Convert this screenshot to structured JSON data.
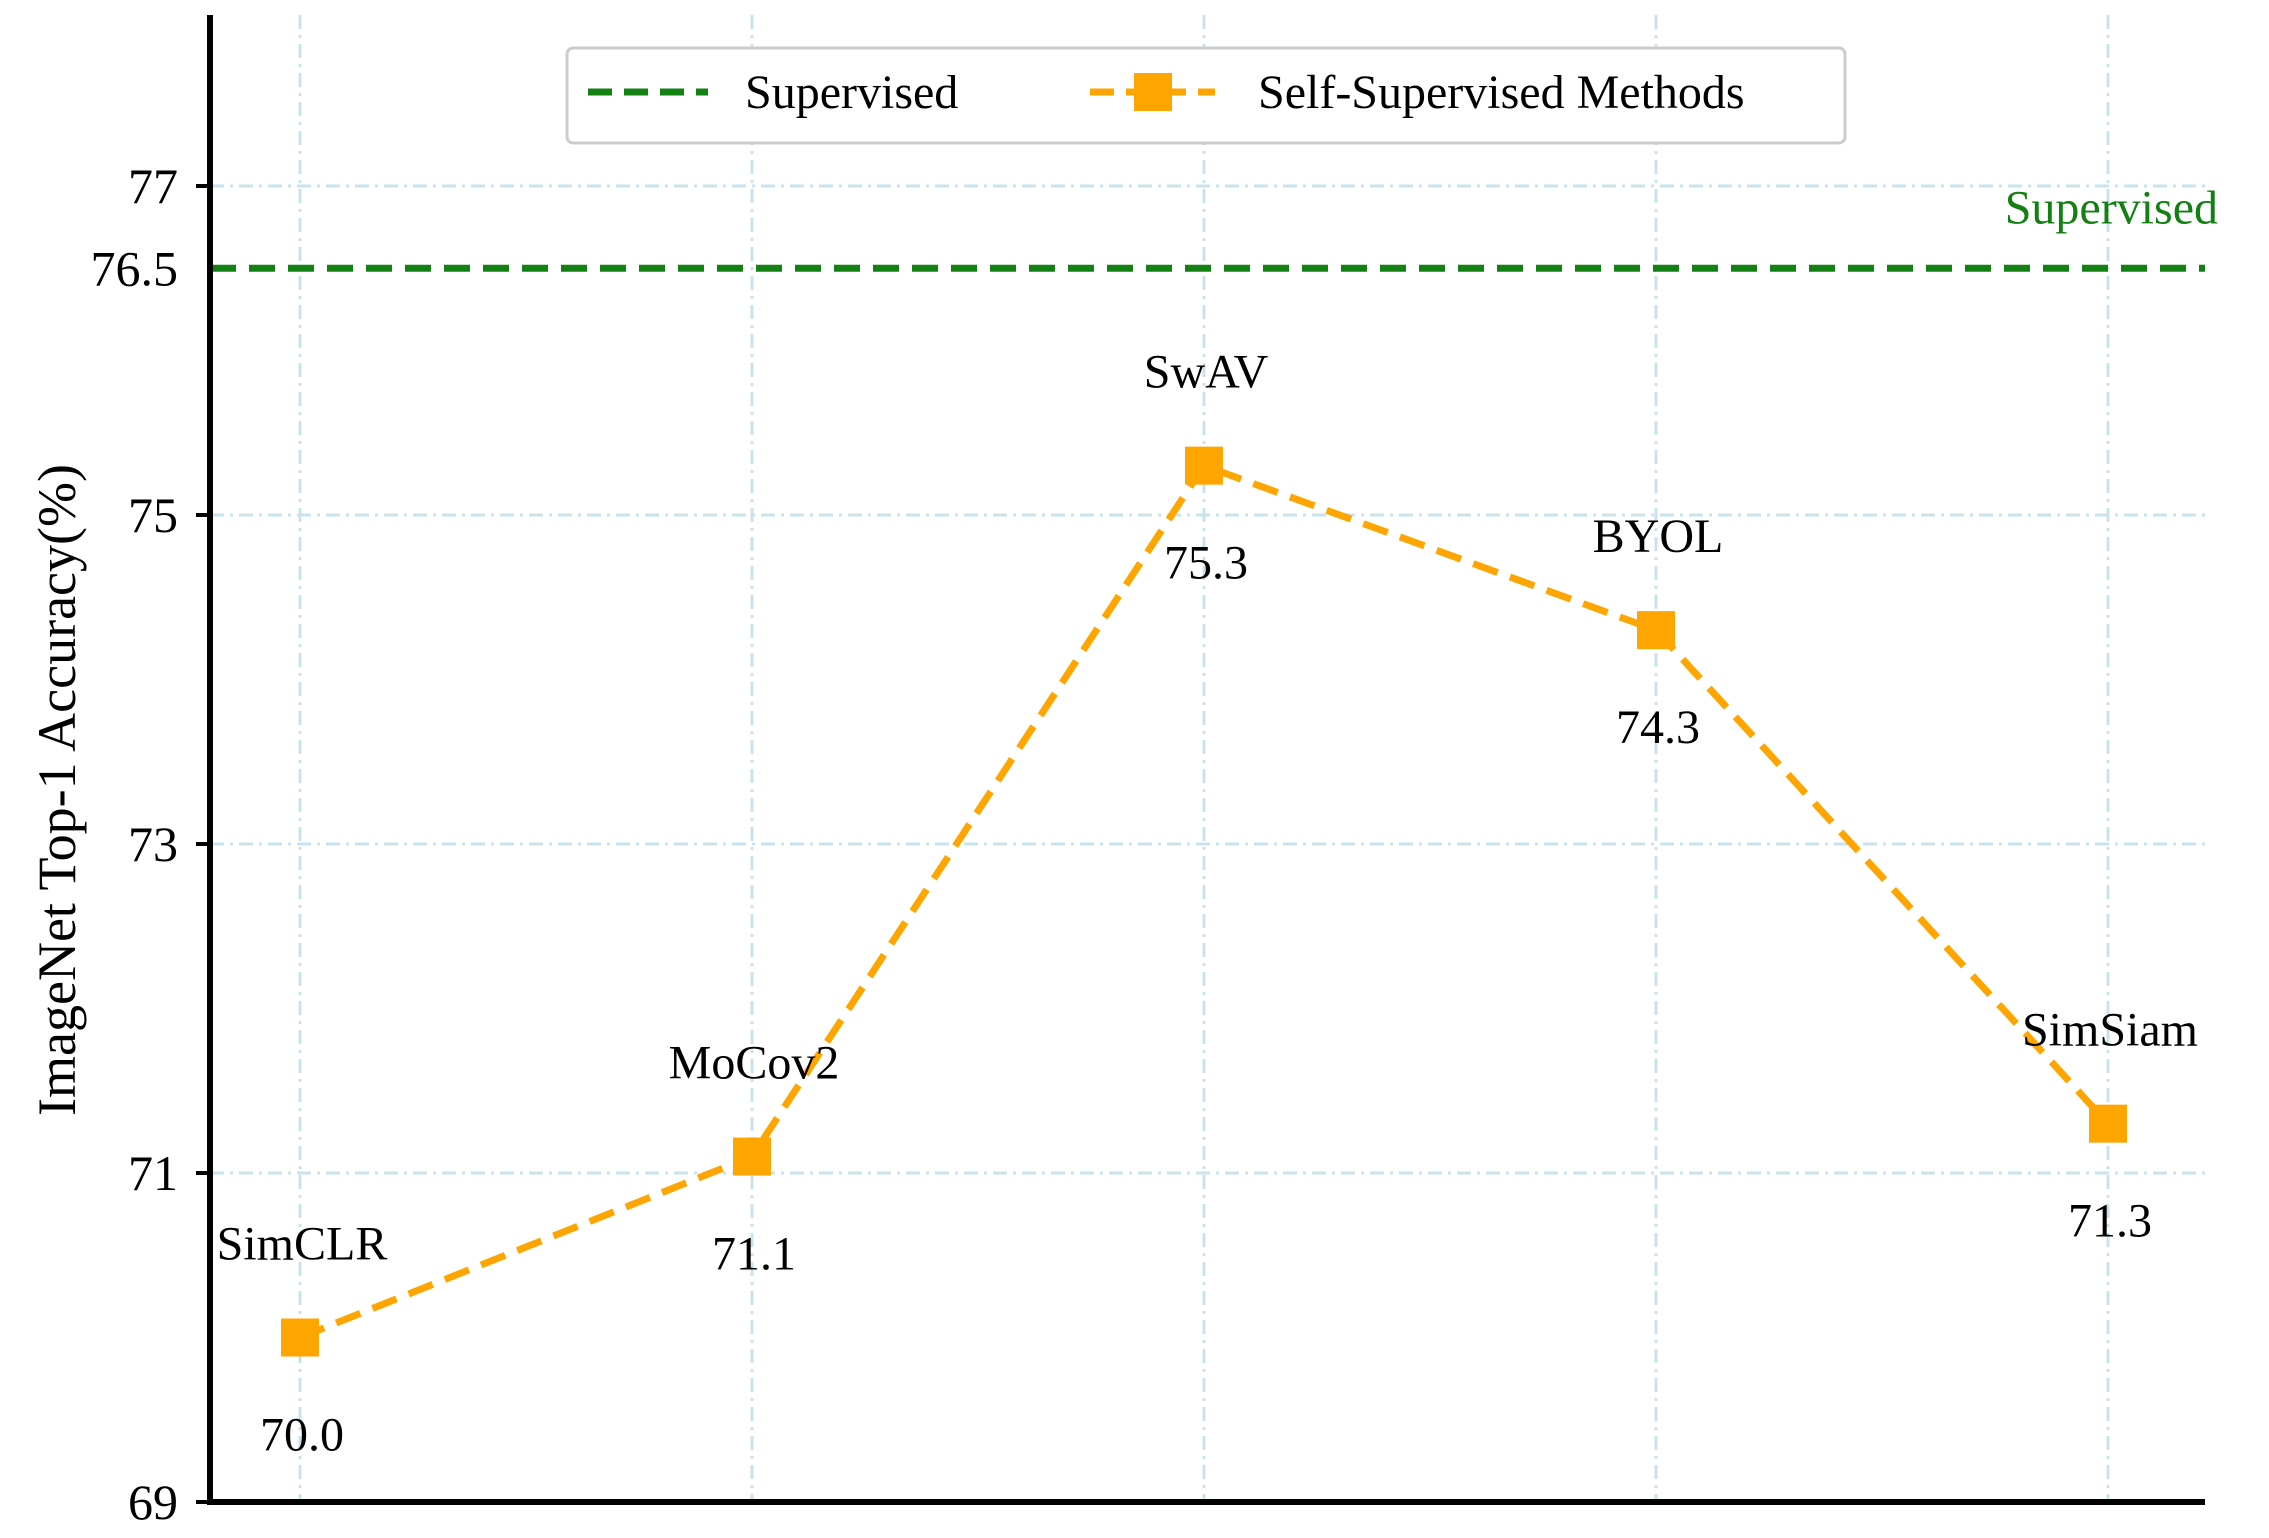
{
  "chart_data": {
    "type": "line",
    "title": "",
    "xlabel": "",
    "ylabel": "ImageNet Top-1 Accuracy(%)",
    "ylim": [
      69,
      78
    ],
    "yticks": [
      69,
      71,
      73,
      75,
      77
    ],
    "grid": true,
    "legend_position": "top-center",
    "categories": [
      "SimCLR",
      "MoCov2",
      "SwAV",
      "BYOL",
      "SimSiam"
    ],
    "series": [
      {
        "name": "Self-Supervised Methods",
        "color": "#FFA500",
        "values": [
          70.0,
          71.1,
          75.3,
          74.3,
          71.3
        ],
        "value_labels": [
          "70.0",
          "71.1",
          "75.3",
          "74.3",
          "71.3"
        ]
      }
    ],
    "reference_line": {
      "name": "Supervised",
      "value": 76.5,
      "value_label": "76.5",
      "label": "Supervised",
      "color": "#138013"
    },
    "legend": [
      "Supervised",
      "Self-Supervised Methods"
    ]
  }
}
